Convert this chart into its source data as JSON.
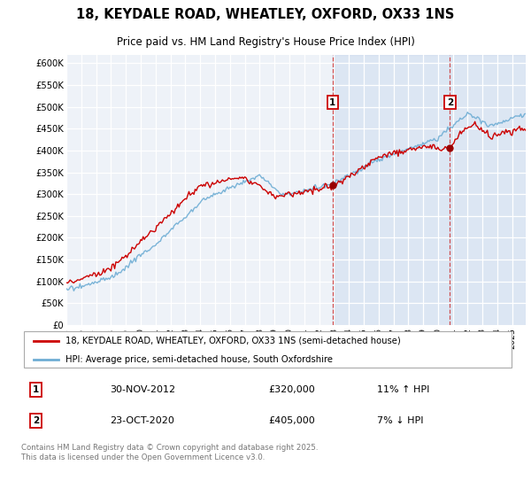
{
  "title_line1": "18, KEYDALE ROAD, WHEATLEY, OXFORD, OX33 1NS",
  "title_line2": "Price paid vs. HM Land Registry's House Price Index (HPI)",
  "legend_label1": "18, KEYDALE ROAD, WHEATLEY, OXFORD, OX33 1NS (semi-detached house)",
  "legend_label2": "HPI: Average price, semi-detached house, South Oxfordshire",
  "transaction1_date": "30-NOV-2012",
  "transaction1_price": "£320,000",
  "transaction1_hpi": "11% ↑ HPI",
  "transaction2_date": "23-OCT-2020",
  "transaction2_price": "£405,000",
  "transaction2_hpi": "7% ↓ HPI",
  "footer": "Contains HM Land Registry data © Crown copyright and database right 2025.\nThis data is licensed under the Open Government Licence v3.0.",
  "line_color_property": "#cc0000",
  "line_color_hpi": "#6eadd4",
  "vline_color": "#cc3333",
  "plot_bg_color": "#eef2f8",
  "grid_color": "#ffffff",
  "shade_color": "#c8d8ee",
  "transaction1_x": 2012.917,
  "transaction2_x": 2020.806,
  "marker_box_color": "#cc0000",
  "marker_dot_color": "#990000",
  "xlim_start": 1995,
  "xlim_end": 2025.9,
  "ylim_min": 0,
  "ylim_max": 620000,
  "ytick_step": 50000,
  "num_points": 372
}
